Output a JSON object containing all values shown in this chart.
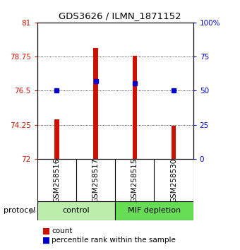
{
  "title": "GDS3626 / ILMN_1871152",
  "samples": [
    "GSM258516",
    "GSM258517",
    "GSM258515",
    "GSM258530"
  ],
  "bar_values": [
    74.6,
    79.3,
    78.8,
    74.2
  ],
  "percentile_values": [
    76.5,
    77.1,
    77.0,
    76.5
  ],
  "bar_bottom": 72,
  "ylim_left": [
    72,
    81
  ],
  "ylim_right": [
    0,
    100
  ],
  "yticks_left": [
    72,
    74.25,
    76.5,
    78.75,
    81
  ],
  "yticks_right": [
    0,
    25,
    50,
    75,
    100
  ],
  "ytick_labels_left": [
    "72",
    "74.25",
    "76.5",
    "78.75",
    "81"
  ],
  "ytick_labels_right": [
    "0",
    "25",
    "50",
    "75",
    "100%"
  ],
  "bar_color": "#CC1100",
  "percentile_color": "#0000CC",
  "bg_color": "#ffffff",
  "plot_bg": "#ffffff",
  "sample_box_color": "#C8C8C8",
  "group_label_control": "control",
  "group_label_mif": "MIF depletion",
  "legend_count": "count",
  "legend_percentile": "percentile rank within the sample",
  "protocol_label": "protocol",
  "ctrl_color": "#BBEEAA",
  "mif_color": "#66DD55"
}
